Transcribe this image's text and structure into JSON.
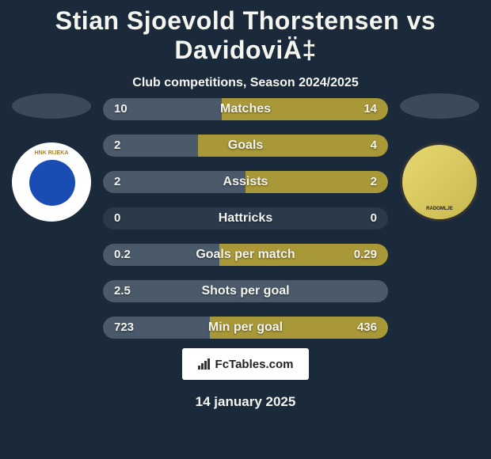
{
  "title": "Stian Sjoevold Thorstensen vs DavidoviÄ‡",
  "subtitle": "Club competitions, Season 2024/2025",
  "date": "14 january 2025",
  "footer_brand": "FcTables.com",
  "left_player_color": "#4a5a6a",
  "right_player_color": "#a89838",
  "bar_bg_color": "#2a3a4a",
  "ellipse_left_color": "#3a4a5a",
  "ellipse_right_color": "#3a4a5a",
  "stats": [
    {
      "label": "Matches",
      "left_val": "10",
      "right_val": "14",
      "left_pct": 41.7,
      "right_pct": 58.3
    },
    {
      "label": "Goals",
      "left_val": "2",
      "right_val": "4",
      "left_pct": 33.3,
      "right_pct": 66.7
    },
    {
      "label": "Assists",
      "left_val": "2",
      "right_val": "2",
      "left_pct": 50.0,
      "right_pct": 50.0
    },
    {
      "label": "Hattricks",
      "left_val": "0",
      "right_val": "0",
      "left_pct": 0,
      "right_pct": 0
    },
    {
      "label": "Goals per match",
      "left_val": "0.2",
      "right_val": "0.29",
      "left_pct": 40.8,
      "right_pct": 59.2
    },
    {
      "label": "Shots per goal",
      "left_val": "2.5",
      "right_val": "",
      "left_pct": 100,
      "right_pct": 0
    },
    {
      "label": "Min per goal",
      "left_val": "723",
      "right_val": "436",
      "left_pct": 37.6,
      "right_pct": 62.4
    }
  ]
}
